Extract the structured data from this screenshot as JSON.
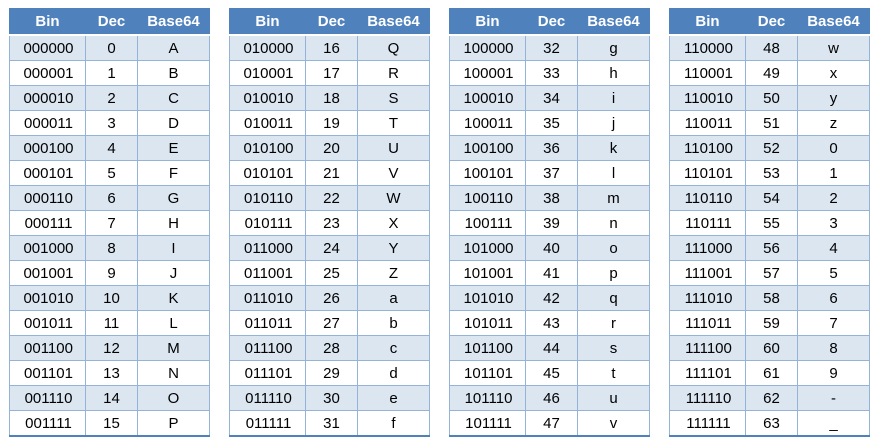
{
  "headers": [
    "Bin",
    "Dec",
    "Base64"
  ],
  "colors": {
    "header_bg": "#4f81bd",
    "header_text": "#ffffff",
    "band": "#dce6f1",
    "border": "#95b3d7"
  },
  "tables": [
    {
      "rows": [
        [
          "000000",
          "0",
          "A"
        ],
        [
          "000001",
          "1",
          "B"
        ],
        [
          "000010",
          "2",
          "C"
        ],
        [
          "000011",
          "3",
          "D"
        ],
        [
          "000100",
          "4",
          "E"
        ],
        [
          "000101",
          "5",
          "F"
        ],
        [
          "000110",
          "6",
          "G"
        ],
        [
          "000111",
          "7",
          "H"
        ],
        [
          "001000",
          "8",
          "I"
        ],
        [
          "001001",
          "9",
          "J"
        ],
        [
          "001010",
          "10",
          "K"
        ],
        [
          "001011",
          "11",
          "L"
        ],
        [
          "001100",
          "12",
          "M"
        ],
        [
          "001101",
          "13",
          "N"
        ],
        [
          "001110",
          "14",
          "O"
        ],
        [
          "001111",
          "15",
          "P"
        ]
      ]
    },
    {
      "rows": [
        [
          "010000",
          "16",
          "Q"
        ],
        [
          "010001",
          "17",
          "R"
        ],
        [
          "010010",
          "18",
          "S"
        ],
        [
          "010011",
          "19",
          "T"
        ],
        [
          "010100",
          "20",
          "U"
        ],
        [
          "010101",
          "21",
          "V"
        ],
        [
          "010110",
          "22",
          "W"
        ],
        [
          "010111",
          "23",
          "X"
        ],
        [
          "011000",
          "24",
          "Y"
        ],
        [
          "011001",
          "25",
          "Z"
        ],
        [
          "011010",
          "26",
          "a"
        ],
        [
          "011011",
          "27",
          "b"
        ],
        [
          "011100",
          "28",
          "c"
        ],
        [
          "011101",
          "29",
          "d"
        ],
        [
          "011110",
          "30",
          "e"
        ],
        [
          "011111",
          "31",
          "f"
        ]
      ]
    },
    {
      "rows": [
        [
          "100000",
          "32",
          "g"
        ],
        [
          "100001",
          "33",
          "h"
        ],
        [
          "100010",
          "34",
          "i"
        ],
        [
          "100011",
          "35",
          "j"
        ],
        [
          "100100",
          "36",
          "k"
        ],
        [
          "100101",
          "37",
          "l"
        ],
        [
          "100110",
          "38",
          "m"
        ],
        [
          "100111",
          "39",
          "n"
        ],
        [
          "101000",
          "40",
          "o"
        ],
        [
          "101001",
          "41",
          "p"
        ],
        [
          "101010",
          "42",
          "q"
        ],
        [
          "101011",
          "43",
          "r"
        ],
        [
          "101100",
          "44",
          "s"
        ],
        [
          "101101",
          "45",
          "t"
        ],
        [
          "101110",
          "46",
          "u"
        ],
        [
          "101111",
          "47",
          "v"
        ]
      ]
    },
    {
      "rows": [
        [
          "110000",
          "48",
          "w"
        ],
        [
          "110001",
          "49",
          "x"
        ],
        [
          "110010",
          "50",
          "y"
        ],
        [
          "110011",
          "51",
          "z"
        ],
        [
          "110100",
          "52",
          "0"
        ],
        [
          "110101",
          "53",
          "1"
        ],
        [
          "110110",
          "54",
          "2"
        ],
        [
          "110111",
          "55",
          "3"
        ],
        [
          "111000",
          "56",
          "4"
        ],
        [
          "111001",
          "57",
          "5"
        ],
        [
          "111010",
          "58",
          "6"
        ],
        [
          "111011",
          "59",
          "7"
        ],
        [
          "111100",
          "60",
          "8"
        ],
        [
          "111101",
          "61",
          "9"
        ],
        [
          "111110",
          "62",
          "-"
        ],
        [
          "111111",
          "63",
          "_"
        ]
      ]
    }
  ]
}
